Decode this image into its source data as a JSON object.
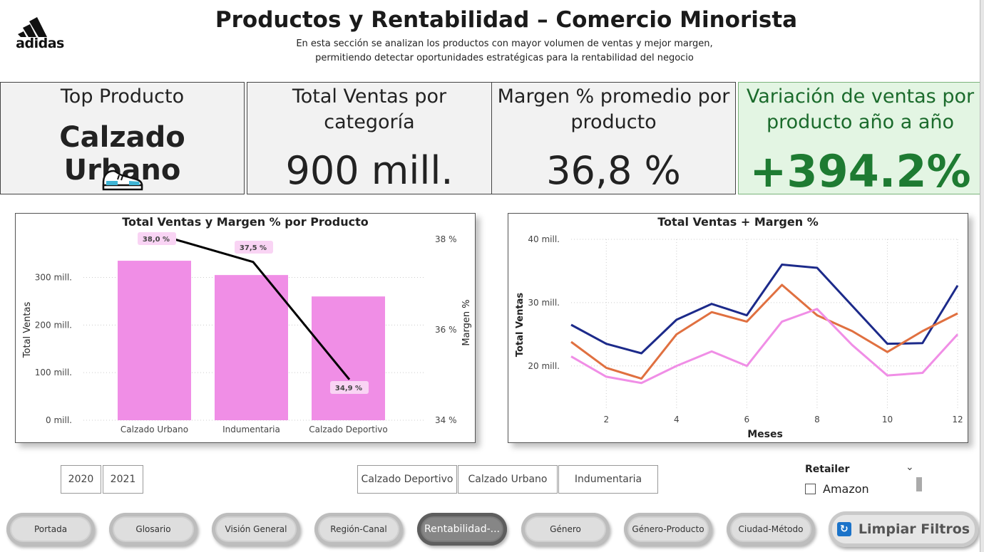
{
  "header": {
    "brand": "adidas",
    "title": "Productos y Rentabilidad – Comercio Minorista",
    "subtitle_line1": "En esta sección se analizan los productos con mayor volumen de ventas y mejor margen,",
    "subtitle_line2": "permitiendo detectar oportunidades estratégicas para la rentabilidad del negocio"
  },
  "kpis": {
    "top_product": {
      "label": "Top Producto",
      "value": "Calzado Urbano",
      "icon": "sneaker-icon"
    },
    "total_sales": {
      "label_line1": "Total Ventas por",
      "label_line2": "categoría",
      "value": "900 mill."
    },
    "margin": {
      "label_line1": "Margen % promedio por",
      "label_line2": "producto",
      "value": "36,8 %"
    },
    "variation": {
      "label_line1": "Variación de ventas por",
      "label_line2": "producto año a año",
      "value": "+394.2%",
      "color": "#1e7b32"
    }
  },
  "chart_data": [
    {
      "type": "bar",
      "title": "Total Ventas y Margen % por Producto",
      "xlabel": "",
      "ylabel": "Total Ventas",
      "y2label": "Margen %",
      "categories": [
        "Calzado Urbano",
        "Indumentaria",
        "Calzado Deportivo"
      ],
      "series": [
        {
          "name": "Total Ventas",
          "values": [
            335,
            305,
            260
          ],
          "color": "#f08ee6"
        },
        {
          "name": "Margen %",
          "type": "line",
          "values": [
            38.0,
            37.5,
            34.9
          ],
          "color": "#000000"
        }
      ],
      "margin_labels": [
        "38,0 %",
        "37,5 %",
        "34,9 %"
      ],
      "yticks": [
        "0 mill.",
        "100 mill.",
        "200 mill.",
        "300 mill."
      ],
      "ylim": [
        0,
        380
      ],
      "y2ticks": [
        "34 %",
        "36 %",
        "38 %"
      ],
      "y2lim": [
        34,
        38
      ]
    },
    {
      "type": "line",
      "title": "Total Ventas + Margen %",
      "xlabel": "Meses",
      "ylabel": "Total Ventas",
      "x": [
        1,
        2,
        3,
        4,
        5,
        6,
        7,
        8,
        9,
        10,
        11,
        12
      ],
      "xticks": [
        "2",
        "4",
        "6",
        "8",
        "10",
        "12"
      ],
      "yticks": [
        "20 mill.",
        "30 mill.",
        "40 mill."
      ],
      "ylim": [
        13,
        40
      ],
      "xlim": [
        1,
        12
      ],
      "series": [
        {
          "color": "#1c2a8a",
          "values": [
            26.5,
            23.5,
            22.0,
            27.3,
            29.8,
            28.0,
            36.0,
            35.5,
            29.5,
            23.5,
            23.6,
            32.7
          ]
        },
        {
          "color": "#e07040",
          "values": [
            23.8,
            19.7,
            18.0,
            25.0,
            28.5,
            27.0,
            32.8,
            28.0,
            25.5,
            22.2,
            25.5,
            28.3
          ]
        },
        {
          "color": "#f08ee6",
          "values": [
            21.5,
            18.3,
            17.3,
            20.0,
            22.3,
            20.0,
            27.0,
            29.0,
            23.3,
            18.5,
            18.9,
            25.0
          ]
        }
      ]
    }
  ],
  "filters": {
    "years": [
      "2020",
      "2021"
    ],
    "categories": [
      "Calzado Deportivo",
      "Calzado Urbano",
      "Indumentaria"
    ],
    "retailer": {
      "title": "Retailer",
      "option": "Amazon"
    }
  },
  "nav": {
    "items": [
      "Portada",
      "Glosario",
      "Visión General",
      "Región-Canal",
      "Rentabilidad-...",
      "Género",
      "Género-Producto",
      "Ciudad-Método"
    ],
    "active_index": 4,
    "clear_label": "Limpiar Filtros"
  }
}
